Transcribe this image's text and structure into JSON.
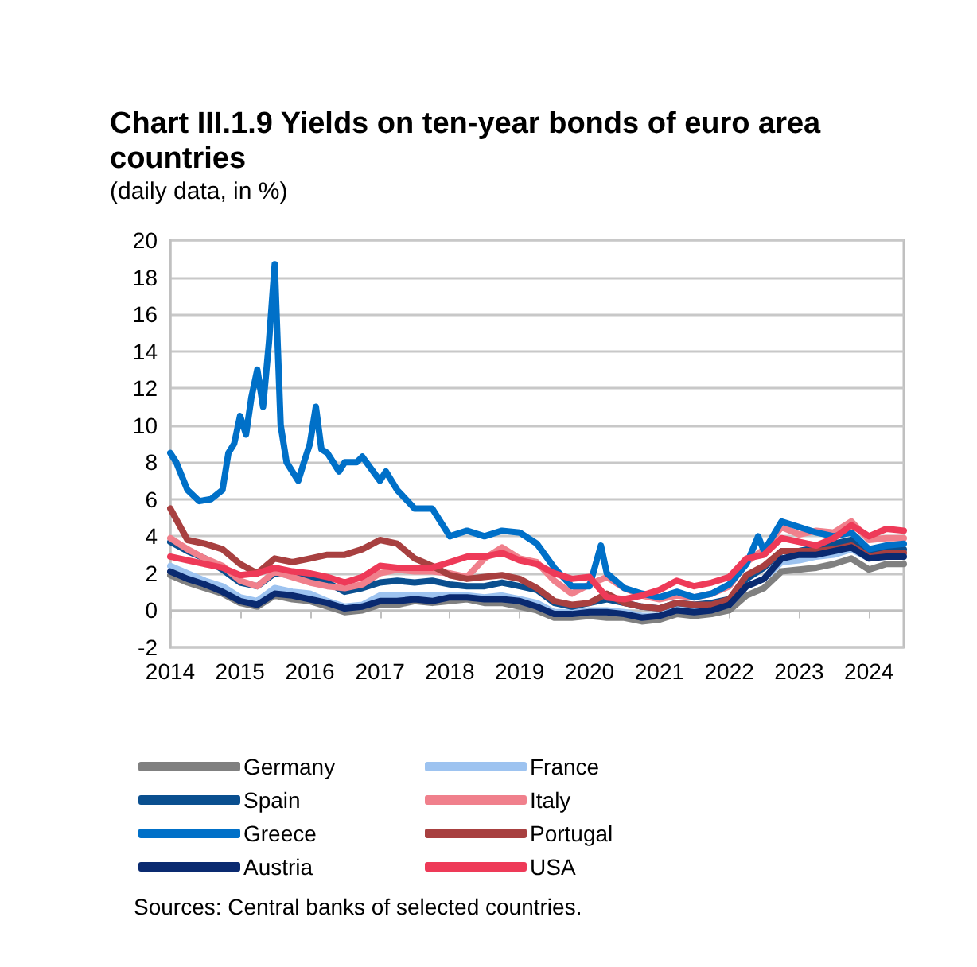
{
  "chart_data": {
    "type": "line",
    "title": "Chart III.1.9 Yields on ten-year bonds of euro area countries",
    "subtitle": "(daily data, in %)",
    "x": [
      "2014-01",
      "2014-04",
      "2014-07",
      "2014-10",
      "2015-01",
      "2015-04",
      "2015-07",
      "2015-10",
      "2016-01",
      "2016-04",
      "2016-07",
      "2016-10",
      "2017-01",
      "2017-04",
      "2017-07",
      "2017-10",
      "2018-01",
      "2018-04",
      "2018-07",
      "2018-10",
      "2019-01",
      "2019-04",
      "2019-07",
      "2019-10",
      "2020-01",
      "2020-04",
      "2020-07",
      "2020-10",
      "2021-01",
      "2021-04",
      "2021-07",
      "2021-10",
      "2022-01",
      "2022-04",
      "2022-07",
      "2022-10",
      "2023-01",
      "2023-04",
      "2023-07",
      "2023-10",
      "2024-01",
      "2024-04",
      "2024-07"
    ],
    "series": [
      {
        "name": "Germany",
        "color": "#808080",
        "values": [
          1.9,
          1.5,
          1.2,
          0.9,
          0.4,
          0.2,
          0.8,
          0.6,
          0.5,
          0.2,
          -0.1,
          0.0,
          0.3,
          0.3,
          0.5,
          0.4,
          0.5,
          0.6,
          0.4,
          0.4,
          0.2,
          0.0,
          -0.4,
          -0.4,
          -0.3,
          -0.4,
          -0.4,
          -0.6,
          -0.5,
          -0.2,
          -0.3,
          -0.2,
          0.0,
          0.8,
          1.2,
          2.1,
          2.2,
          2.3,
          2.5,
          2.8,
          2.2,
          2.5,
          2.5
        ]
      },
      {
        "name": "France",
        "color": "#9dc3f0",
        "values": [
          2.4,
          2.0,
          1.6,
          1.3,
          0.7,
          0.5,
          1.2,
          1.0,
          0.9,
          0.5,
          0.2,
          0.3,
          0.8,
          0.8,
          0.8,
          0.8,
          0.8,
          0.8,
          0.7,
          0.8,
          0.6,
          0.4,
          -0.1,
          -0.1,
          0.0,
          0.0,
          -0.1,
          -0.3,
          -0.3,
          0.1,
          0.0,
          0.1,
          0.3,
          1.3,
          1.7,
          2.6,
          2.7,
          2.9,
          3.0,
          3.3,
          2.8,
          3.0,
          3.1
        ]
      },
      {
        "name": "Spain",
        "color": "#0a4f8f",
        "values": [
          3.7,
          3.2,
          2.8,
          2.2,
          1.5,
          1.3,
          2.0,
          1.9,
          1.7,
          1.5,
          1.0,
          1.2,
          1.5,
          1.6,
          1.5,
          1.6,
          1.4,
          1.3,
          1.3,
          1.5,
          1.3,
          1.1,
          0.4,
          0.2,
          0.4,
          0.6,
          0.4,
          0.2,
          0.1,
          0.4,
          0.3,
          0.4,
          0.6,
          1.7,
          2.3,
          3.2,
          3.2,
          3.4,
          3.6,
          3.8,
          3.1,
          3.2,
          3.3
        ]
      },
      {
        "name": "Italy",
        "color": "#f0808c",
        "values": [
          3.9,
          3.3,
          2.8,
          2.4,
          1.6,
          1.3,
          2.1,
          1.8,
          1.5,
          1.3,
          1.2,
          1.4,
          2.0,
          2.2,
          2.1,
          2.1,
          2.0,
          1.8,
          2.8,
          3.4,
          2.8,
          2.6,
          1.6,
          0.9,
          1.4,
          1.8,
          1.2,
          0.8,
          0.6,
          0.8,
          0.7,
          0.9,
          1.3,
          2.6,
          3.3,
          4.5,
          4.1,
          4.3,
          4.2,
          4.8,
          3.8,
          3.9,
          3.9
        ]
      },
      {
        "name": "Greece",
        "color": "#0070c8",
        "x": [
          "2014-01",
          "2014-02",
          "2014-04",
          "2014-06",
          "2014-08",
          "2014-10",
          "2014-11",
          "2014-12",
          "2015-01",
          "2015-02",
          "2015-03",
          "2015-04",
          "2015-05",
          "2015-06",
          "2015-07",
          "2015-08",
          "2015-09",
          "2015-10",
          "2015-11",
          "2015-12",
          "2016-01",
          "2016-02",
          "2016-03",
          "2016-04",
          "2016-06",
          "2016-07",
          "2016-09",
          "2016-10",
          "2017-01",
          "2017-02",
          "2017-04",
          "2017-07",
          "2017-10",
          "2018-01",
          "2018-04",
          "2018-07",
          "2018-10",
          "2019-01",
          "2019-04",
          "2019-07",
          "2019-10",
          "2020-01",
          "2020-03",
          "2020-04",
          "2020-07",
          "2020-10",
          "2021-01",
          "2021-04",
          "2021-07",
          "2021-10",
          "2022-01",
          "2022-04",
          "2022-06",
          "2022-07",
          "2022-10",
          "2023-01",
          "2023-04",
          "2023-07",
          "2023-10",
          "2024-01",
          "2024-04",
          "2024-07"
        ],
        "values": [
          8.5,
          8.0,
          6.5,
          5.9,
          6.0,
          6.5,
          8.5,
          9.0,
          10.5,
          9.5,
          11.5,
          13.0,
          11.0,
          14.5,
          18.7,
          10.0,
          8.0,
          7.5,
          7.0,
          8.0,
          9.0,
          11.0,
          8.7,
          8.5,
          7.5,
          8.0,
          8.0,
          8.3,
          7.0,
          7.5,
          6.5,
          5.5,
          5.5,
          4.0,
          4.3,
          4.0,
          4.3,
          4.2,
          3.6,
          2.3,
          1.3,
          1.3,
          3.5,
          2.0,
          1.2,
          0.9,
          0.7,
          1.0,
          0.7,
          0.9,
          1.4,
          2.5,
          4.0,
          3.2,
          4.8,
          4.5,
          4.2,
          4.0,
          4.2,
          3.3,
          3.5,
          3.6
        ]
      },
      {
        "name": "Portugal",
        "color": "#a84040",
        "values": [
          5.5,
          3.8,
          3.6,
          3.3,
          2.5,
          2.0,
          2.8,
          2.6,
          2.8,
          3.0,
          3.0,
          3.3,
          3.8,
          3.6,
          2.8,
          2.4,
          1.9,
          1.7,
          1.8,
          1.9,
          1.7,
          1.2,
          0.5,
          0.3,
          0.4,
          0.9,
          0.4,
          0.2,
          0.1,
          0.4,
          0.3,
          0.3,
          0.6,
          1.9,
          2.4,
          3.2,
          3.2,
          3.2,
          3.3,
          3.5,
          2.9,
          3.1,
          3.1
        ]
      },
      {
        "name": "Austria",
        "color": "#0a2a70",
        "values": [
          2.1,
          1.7,
          1.4,
          1.0,
          0.5,
          0.3,
          0.9,
          0.8,
          0.6,
          0.4,
          0.1,
          0.2,
          0.5,
          0.5,
          0.6,
          0.5,
          0.7,
          0.7,
          0.6,
          0.6,
          0.5,
          0.2,
          -0.2,
          -0.2,
          -0.1,
          -0.1,
          -0.2,
          -0.4,
          -0.3,
          0.0,
          -0.1,
          0.0,
          0.3,
          1.3,
          1.7,
          2.8,
          3.0,
          3.0,
          3.2,
          3.4,
          2.8,
          2.9,
          2.9
        ]
      },
      {
        "name": "USA",
        "color": "#ee3a58",
        "values": [
          2.9,
          2.7,
          2.5,
          2.3,
          1.9,
          2.0,
          2.3,
          2.1,
          2.0,
          1.8,
          1.5,
          1.8,
          2.4,
          2.3,
          2.3,
          2.3,
          2.6,
          2.9,
          2.9,
          3.1,
          2.7,
          2.5,
          2.0,
          1.7,
          1.8,
          0.7,
          0.6,
          0.8,
          1.1,
          1.6,
          1.3,
          1.5,
          1.8,
          2.8,
          3.0,
          3.9,
          3.7,
          3.5,
          3.9,
          4.6,
          4.0,
          4.4,
          4.3
        ]
      }
    ],
    "xlim": [
      "2014-01-01",
      "2024-07-01"
    ],
    "xticks": [
      "2014",
      "2015",
      "2016",
      "2017",
      "2018",
      "2019",
      "2020",
      "2021",
      "2022",
      "2023",
      "2024"
    ],
    "ylim": [
      -2,
      20
    ],
    "yticks": [
      -2,
      0,
      2,
      4,
      6,
      8,
      10,
      12,
      14,
      16,
      18,
      20
    ],
    "grid": "y",
    "legend": "bottom",
    "marker": "none",
    "line_style": "solid",
    "annotations": [
      "Sources: Central banks of selected countries."
    ]
  }
}
